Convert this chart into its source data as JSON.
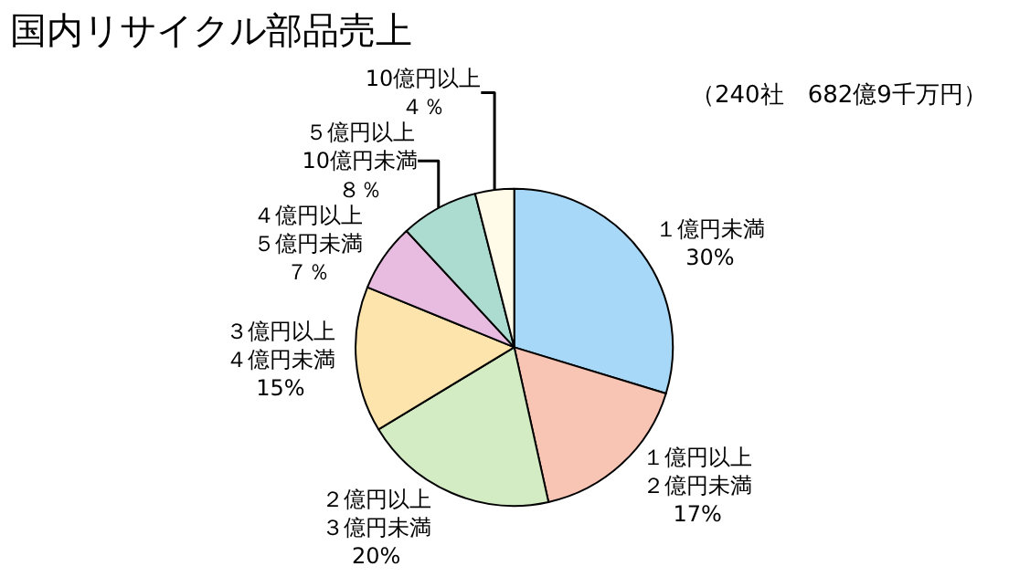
{
  "chart_data": {
    "type": "pie",
    "title": "国内リサイクル部品売上",
    "subtitle": "（240社　682億9千万円）",
    "categories": [
      "１億円未満",
      "１億円以上２億円未満",
      "２億円以上３億円未満",
      "３億円以上４億円未満",
      "４億円以上５億円未満",
      "５億円以上10億円未満",
      "10億円以上"
    ],
    "values": [
      30,
      17,
      20,
      15,
      7,
      8,
      4
    ],
    "value_labels": [
      "30%",
      "17%",
      "20%",
      "15%",
      "７％",
      "８％",
      "４％"
    ],
    "colors": [
      "#a8d8f8",
      "#f8c4b4",
      "#d4ecc4",
      "#fce4ac",
      "#e8bce0",
      "#acdcd0",
      "#fffbe8"
    ],
    "legend": false
  }
}
